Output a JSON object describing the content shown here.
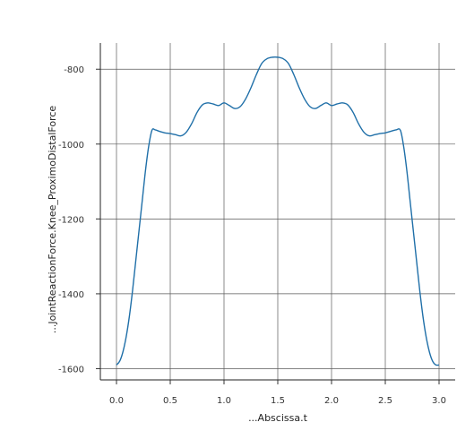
{
  "chart_data": {
    "type": "line",
    "title": "",
    "xlabel": "...Abscissa.t",
    "ylabel": "...JointReactionForce.Knee_ProximoDistalForce",
    "xlim": [
      -0.15,
      3.15
    ],
    "ylim": [
      -1630,
      -730
    ],
    "xticks": [
      0.0,
      0.5,
      1.0,
      1.5,
      2.0,
      2.5,
      3.0
    ],
    "xtick_labels": [
      "0.0",
      "0.5",
      "1.0",
      "1.5",
      "2.0",
      "2.5",
      "3.0"
    ],
    "yticks": [
      -1600,
      -1400,
      -1200,
      -1000,
      -800
    ],
    "ytick_labels": [
      "-1600",
      "-1400",
      "-1200",
      "-1000",
      "-800"
    ],
    "grid": true,
    "legend": "none",
    "colors": {
      "line": "#1f6fa8",
      "grid": "#5a5a5a",
      "axis": "#222222"
    },
    "series": [
      {
        "x": [
          0.0,
          0.03,
          0.06,
          0.09,
          0.12,
          0.15,
          0.18,
          0.21,
          0.24,
          0.27,
          0.3,
          0.33,
          0.36,
          0.4,
          0.45,
          0.5,
          0.55,
          0.6,
          0.65,
          0.7,
          0.75,
          0.8,
          0.85,
          0.9,
          0.95,
          1.0,
          1.05,
          1.1,
          1.15,
          1.2,
          1.25,
          1.3,
          1.35,
          1.4,
          1.45,
          1.5,
          1.55,
          1.6,
          1.65,
          1.7,
          1.75,
          1.8,
          1.85,
          1.9,
          1.95,
          2.0,
          2.05,
          2.1,
          2.15,
          2.2,
          2.25,
          2.3,
          2.35,
          2.4,
          2.45,
          2.5,
          2.55,
          2.6,
          2.64,
          2.67,
          2.7,
          2.73,
          2.76,
          2.79,
          2.82,
          2.85,
          2.88,
          2.91,
          2.94,
          2.97,
          3.0
        ],
        "y": [
          -1590,
          -1580,
          -1555,
          -1515,
          -1460,
          -1390,
          -1310,
          -1230,
          -1150,
          -1070,
          -1005,
          -963,
          -962,
          -966,
          -970,
          -972,
          -975,
          -978,
          -968,
          -945,
          -915,
          -895,
          -890,
          -893,
          -897,
          -890,
          -897,
          -905,
          -900,
          -880,
          -850,
          -815,
          -785,
          -772,
          -768,
          -768,
          -772,
          -785,
          -815,
          -850,
          -880,
          -900,
          -905,
          -897,
          -890,
          -897,
          -893,
          -890,
          -895,
          -915,
          -945,
          -968,
          -978,
          -975,
          -972,
          -970,
          -966,
          -962,
          -963,
          -1005,
          -1070,
          -1150,
          -1230,
          -1310,
          -1390,
          -1460,
          -1515,
          -1555,
          -1580,
          -1590,
          -1590
        ]
      }
    ]
  }
}
